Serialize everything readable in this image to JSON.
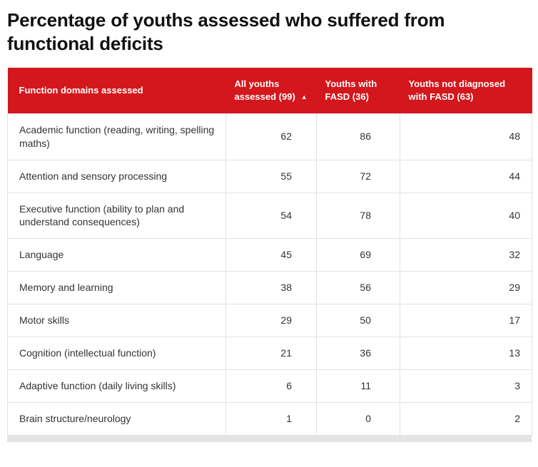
{
  "chart_data": {
    "type": "table",
    "title": "Percentage of youths assessed who suffered from functional deficits",
    "columns": [
      "Function domains assessed",
      "All youths assessed (99)",
      "Youths with FASD (36)",
      "Youths not diagnosed with FASD (63)"
    ],
    "sort": {
      "column_index": 1,
      "icon": "▲",
      "icon_name": "sort-ascending-icon"
    },
    "rows": [
      {
        "domain": "Academic function (reading, writing, spelling maths)",
        "values": [
          62,
          86,
          48
        ]
      },
      {
        "domain": "Attention and sensory processing",
        "values": [
          55,
          72,
          44
        ]
      },
      {
        "domain": "Executive function (ability to plan and understand consequences)",
        "values": [
          54,
          78,
          40
        ]
      },
      {
        "domain": "Language",
        "values": [
          45,
          69,
          32
        ]
      },
      {
        "domain": "Memory and learning",
        "values": [
          38,
          56,
          29
        ]
      },
      {
        "domain": "Motor skills",
        "values": [
          29,
          50,
          17
        ]
      },
      {
        "domain": "Cognition (intellectual function)",
        "values": [
          21,
          36,
          13
        ]
      },
      {
        "domain": "Adaptive function (daily living skills)",
        "values": [
          6,
          11,
          3
        ]
      },
      {
        "domain": "Brain structure/neurology",
        "values": [
          1,
          0,
          2
        ]
      }
    ],
    "colors": {
      "header_background": "#d4171c",
      "header_text": "#ffffff",
      "row_border": "#e2e2e2",
      "body_text": "#333333",
      "title_text": "#111111",
      "footer_bar": "#e4e4e4"
    },
    "layout_hints": {
      "value_alignment": "right",
      "domain_alignment": "left",
      "sorted_by": "All youths assessed (99)"
    }
  }
}
